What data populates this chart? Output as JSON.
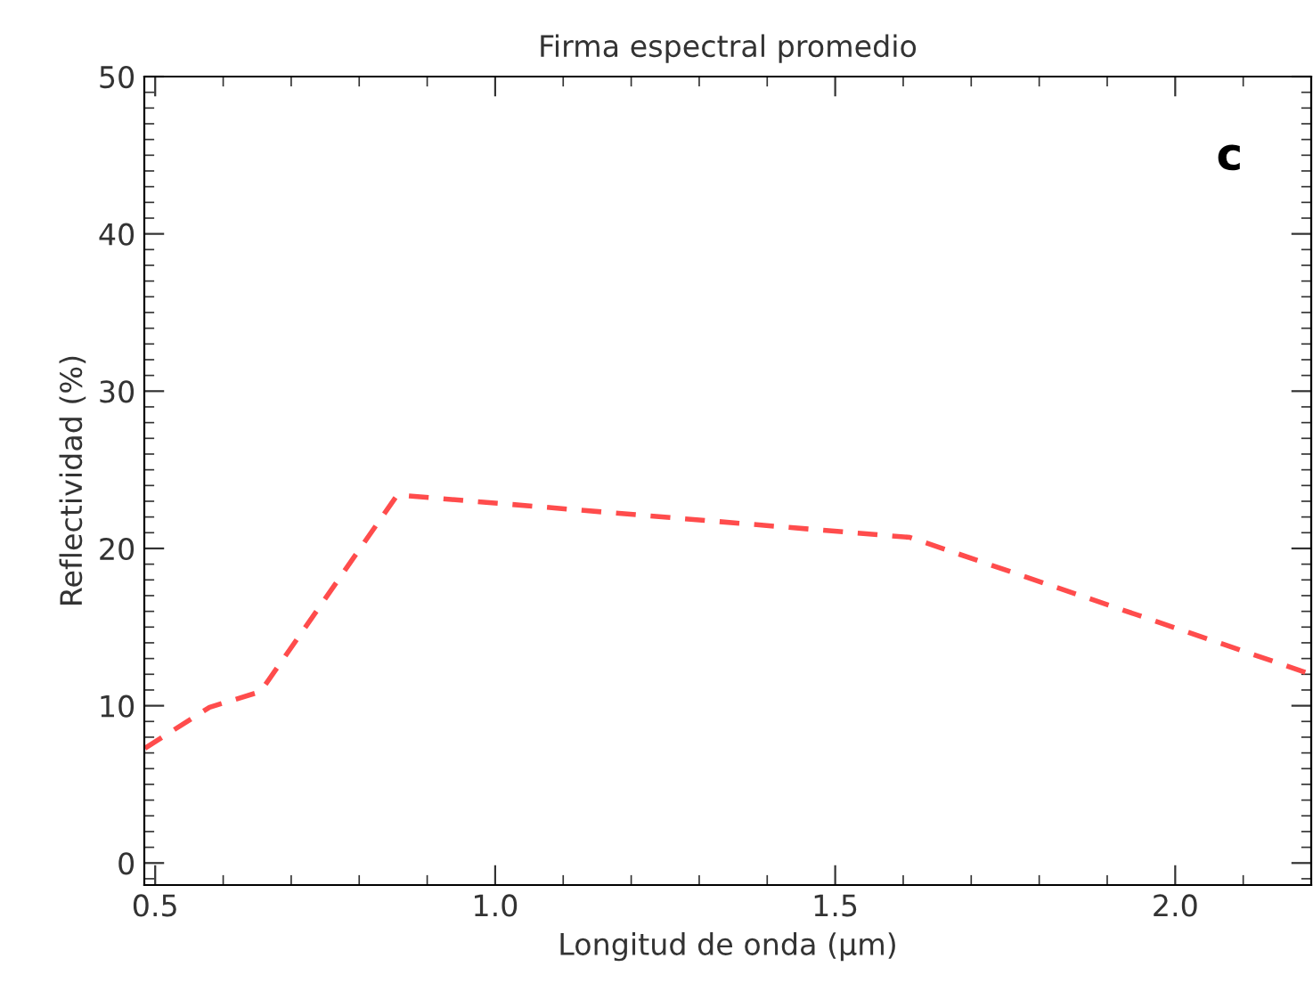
{
  "chart_data": {
    "type": "line",
    "title": "Firma espectral promedio",
    "xlabel": "Longitud de onda (µm)",
    "ylabel": "Reflectividad (%)",
    "x": [
      0.485,
      0.58,
      0.655,
      0.856,
      1.61,
      2.2
    ],
    "series": [
      {
        "color": "#ff4c4c",
        "values": [
          7.3,
          9.9,
          10.9,
          23.4,
          20.7,
          12.0
        ]
      }
    ],
    "line_style": "dashed",
    "marker": "none",
    "xlim": [
      0.484,
      2.2
    ],
    "xticks": [
      0.5,
      {
        "value": 1,
        "label": "1.0"
      },
      1.5,
      {
        "value": 2,
        "label": "2.0"
      }
    ],
    "ylim": [
      -1.4,
      50
    ],
    "yticks": [
      0,
      10,
      20,
      30,
      40,
      50
    ],
    "grid": false,
    "legend": false,
    "annotations": [
      "c"
    ]
  }
}
